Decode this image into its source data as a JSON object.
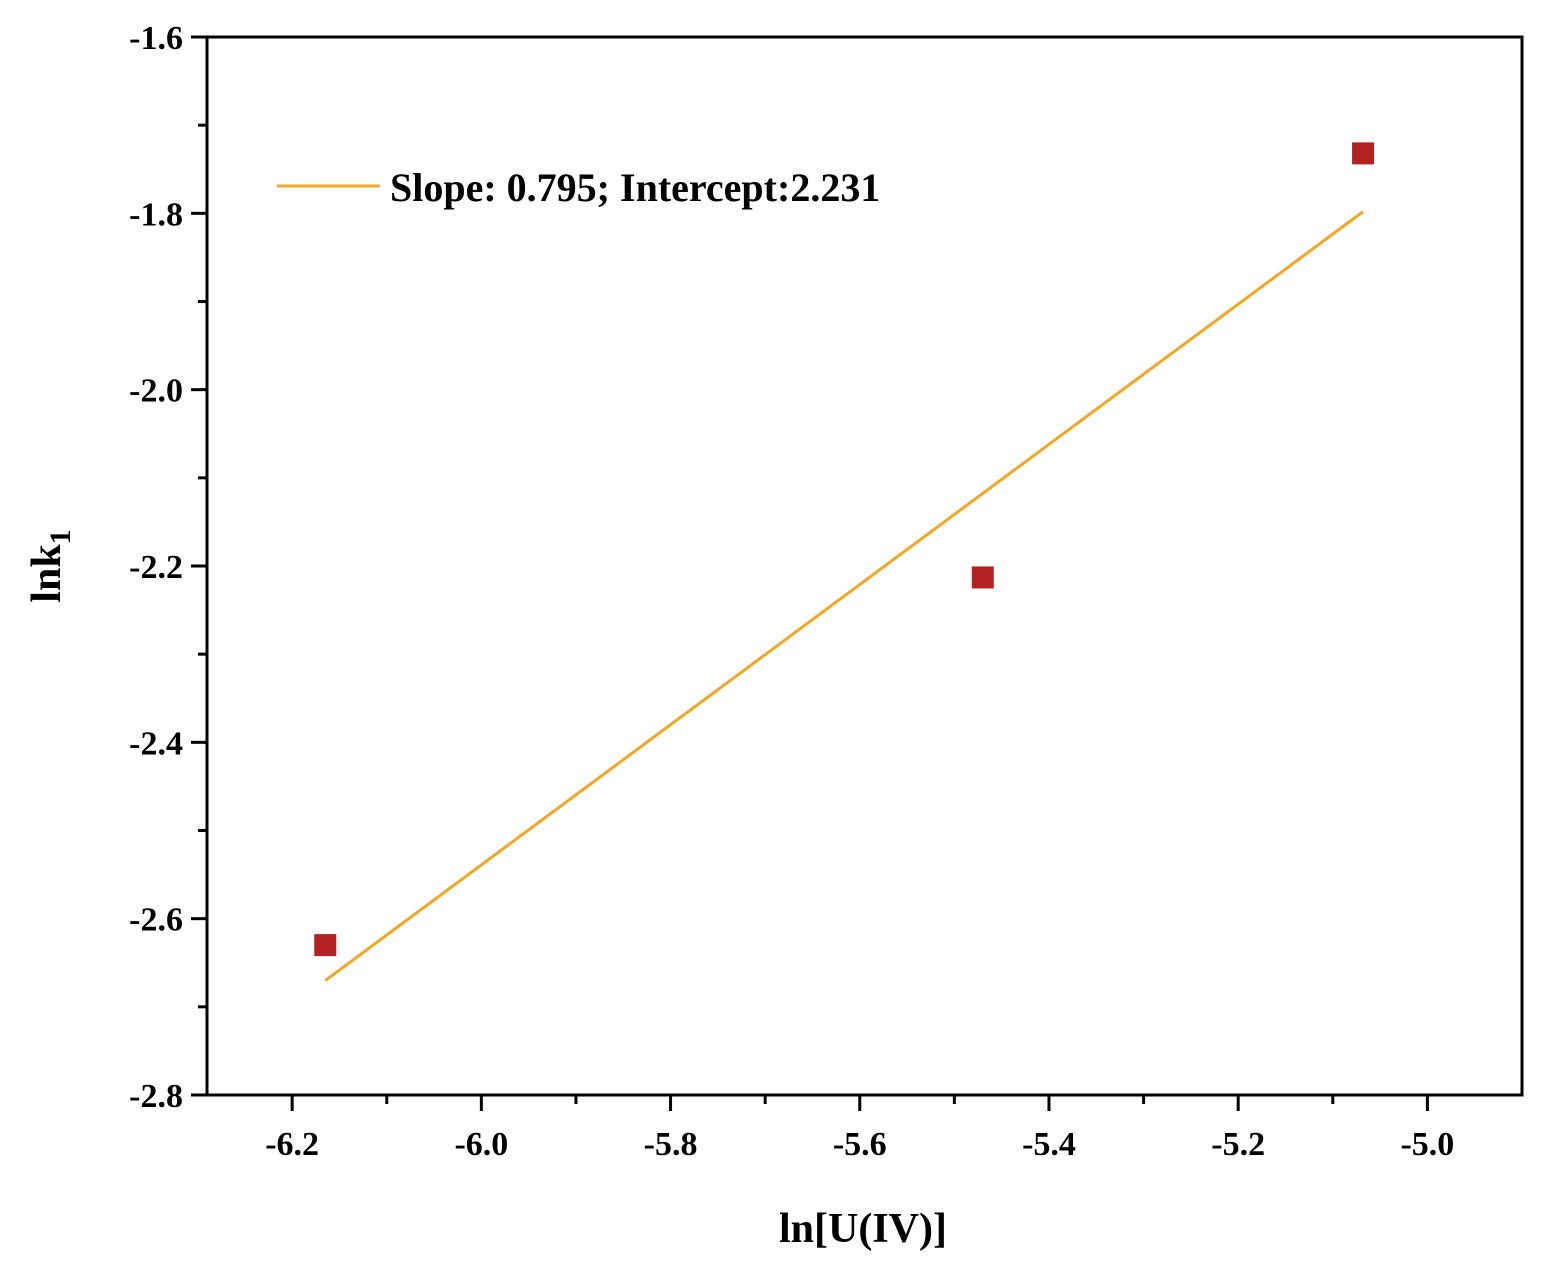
{
  "chart_data": {
    "type": "scatter",
    "xlabel": "ln[U(IV)]",
    "ylabel_main": "lnk",
    "ylabel_sub": "1",
    "xlim": [
      -6.29,
      -4.9
    ],
    "ylim": [
      -2.8,
      -1.6
    ],
    "x_ticks_major": [
      -6.2,
      -6.0,
      -5.8,
      -5.6,
      -5.4,
      -5.2,
      -5.0
    ],
    "x_tick_labels": [
      "-6.2",
      "-6.0",
      "-5.8",
      "-5.6",
      "-5.4",
      "-5.2",
      "-5.0"
    ],
    "y_ticks_major": [
      -2.8,
      -2.6,
      -2.4,
      -2.2,
      -2.0,
      -1.8,
      -1.6
    ],
    "y_tick_labels": [
      "-2.8",
      "-2.6",
      "-2.4",
      "-2.2",
      "-2.0",
      "-1.8",
      "-1.6"
    ],
    "points": [
      {
        "x": -6.165,
        "y": -2.63
      },
      {
        "x": -5.47,
        "y": -2.213
      },
      {
        "x": -5.068,
        "y": -1.732
      }
    ],
    "fit_line": {
      "label": "Slope: 0.795; Intercept:2.231",
      "slope": 0.795,
      "intercept": 2.231,
      "x_range": [
        -6.165,
        -5.068
      ]
    },
    "colors": {
      "marker": "#b22222",
      "fit_line": "#f5a623",
      "axis": "#000000"
    },
    "legend_position": "top-left",
    "grid": false
  }
}
